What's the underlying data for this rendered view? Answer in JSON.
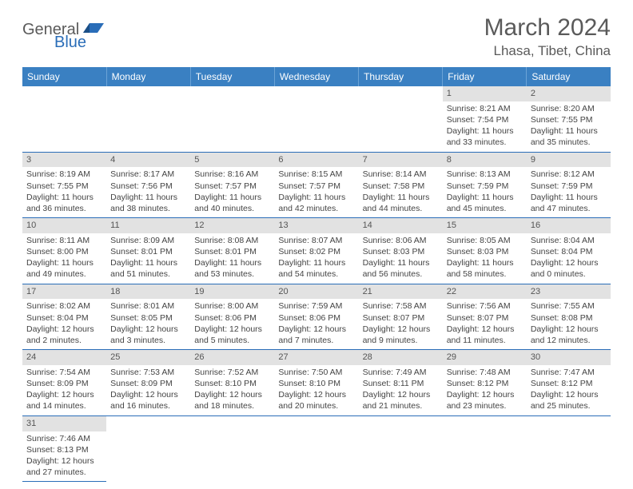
{
  "logo": {
    "part1": "General",
    "part2": "Blue"
  },
  "title": "March 2024",
  "location": "Lhasa, Tibet, China",
  "colors": {
    "header_bg": "#3a80c2",
    "header_text": "#ffffff",
    "border": "#2a6db8",
    "daynum_bg": "#e2e2e2",
    "body_text": "#444444",
    "logo_gray": "#5a5a5a",
    "logo_blue": "#2a6db8"
  },
  "day_headers": [
    "Sunday",
    "Monday",
    "Tuesday",
    "Wednesday",
    "Thursday",
    "Friday",
    "Saturday"
  ],
  "weeks": [
    [
      null,
      null,
      null,
      null,
      null,
      {
        "n": "1",
        "sr": "Sunrise: 8:21 AM",
        "ss": "Sunset: 7:54 PM",
        "d1": "Daylight: 11 hours",
        "d2": "and 33 minutes."
      },
      {
        "n": "2",
        "sr": "Sunrise: 8:20 AM",
        "ss": "Sunset: 7:55 PM",
        "d1": "Daylight: 11 hours",
        "d2": "and 35 minutes."
      }
    ],
    [
      {
        "n": "3",
        "sr": "Sunrise: 8:19 AM",
        "ss": "Sunset: 7:55 PM",
        "d1": "Daylight: 11 hours",
        "d2": "and 36 minutes."
      },
      {
        "n": "4",
        "sr": "Sunrise: 8:17 AM",
        "ss": "Sunset: 7:56 PM",
        "d1": "Daylight: 11 hours",
        "d2": "and 38 minutes."
      },
      {
        "n": "5",
        "sr": "Sunrise: 8:16 AM",
        "ss": "Sunset: 7:57 PM",
        "d1": "Daylight: 11 hours",
        "d2": "and 40 minutes."
      },
      {
        "n": "6",
        "sr": "Sunrise: 8:15 AM",
        "ss": "Sunset: 7:57 PM",
        "d1": "Daylight: 11 hours",
        "d2": "and 42 minutes."
      },
      {
        "n": "7",
        "sr": "Sunrise: 8:14 AM",
        "ss": "Sunset: 7:58 PM",
        "d1": "Daylight: 11 hours",
        "d2": "and 44 minutes."
      },
      {
        "n": "8",
        "sr": "Sunrise: 8:13 AM",
        "ss": "Sunset: 7:59 PM",
        "d1": "Daylight: 11 hours",
        "d2": "and 45 minutes."
      },
      {
        "n": "9",
        "sr": "Sunrise: 8:12 AM",
        "ss": "Sunset: 7:59 PM",
        "d1": "Daylight: 11 hours",
        "d2": "and 47 minutes."
      }
    ],
    [
      {
        "n": "10",
        "sr": "Sunrise: 8:11 AM",
        "ss": "Sunset: 8:00 PM",
        "d1": "Daylight: 11 hours",
        "d2": "and 49 minutes."
      },
      {
        "n": "11",
        "sr": "Sunrise: 8:09 AM",
        "ss": "Sunset: 8:01 PM",
        "d1": "Daylight: 11 hours",
        "d2": "and 51 minutes."
      },
      {
        "n": "12",
        "sr": "Sunrise: 8:08 AM",
        "ss": "Sunset: 8:01 PM",
        "d1": "Daylight: 11 hours",
        "d2": "and 53 minutes."
      },
      {
        "n": "13",
        "sr": "Sunrise: 8:07 AM",
        "ss": "Sunset: 8:02 PM",
        "d1": "Daylight: 11 hours",
        "d2": "and 54 minutes."
      },
      {
        "n": "14",
        "sr": "Sunrise: 8:06 AM",
        "ss": "Sunset: 8:03 PM",
        "d1": "Daylight: 11 hours",
        "d2": "and 56 minutes."
      },
      {
        "n": "15",
        "sr": "Sunrise: 8:05 AM",
        "ss": "Sunset: 8:03 PM",
        "d1": "Daylight: 11 hours",
        "d2": "and 58 minutes."
      },
      {
        "n": "16",
        "sr": "Sunrise: 8:04 AM",
        "ss": "Sunset: 8:04 PM",
        "d1": "Daylight: 12 hours",
        "d2": "and 0 minutes."
      }
    ],
    [
      {
        "n": "17",
        "sr": "Sunrise: 8:02 AM",
        "ss": "Sunset: 8:04 PM",
        "d1": "Daylight: 12 hours",
        "d2": "and 2 minutes."
      },
      {
        "n": "18",
        "sr": "Sunrise: 8:01 AM",
        "ss": "Sunset: 8:05 PM",
        "d1": "Daylight: 12 hours",
        "d2": "and 3 minutes."
      },
      {
        "n": "19",
        "sr": "Sunrise: 8:00 AM",
        "ss": "Sunset: 8:06 PM",
        "d1": "Daylight: 12 hours",
        "d2": "and 5 minutes."
      },
      {
        "n": "20",
        "sr": "Sunrise: 7:59 AM",
        "ss": "Sunset: 8:06 PM",
        "d1": "Daylight: 12 hours",
        "d2": "and 7 minutes."
      },
      {
        "n": "21",
        "sr": "Sunrise: 7:58 AM",
        "ss": "Sunset: 8:07 PM",
        "d1": "Daylight: 12 hours",
        "d2": "and 9 minutes."
      },
      {
        "n": "22",
        "sr": "Sunrise: 7:56 AM",
        "ss": "Sunset: 8:07 PM",
        "d1": "Daylight: 12 hours",
        "d2": "and 11 minutes."
      },
      {
        "n": "23",
        "sr": "Sunrise: 7:55 AM",
        "ss": "Sunset: 8:08 PM",
        "d1": "Daylight: 12 hours",
        "d2": "and 12 minutes."
      }
    ],
    [
      {
        "n": "24",
        "sr": "Sunrise: 7:54 AM",
        "ss": "Sunset: 8:09 PM",
        "d1": "Daylight: 12 hours",
        "d2": "and 14 minutes."
      },
      {
        "n": "25",
        "sr": "Sunrise: 7:53 AM",
        "ss": "Sunset: 8:09 PM",
        "d1": "Daylight: 12 hours",
        "d2": "and 16 minutes."
      },
      {
        "n": "26",
        "sr": "Sunrise: 7:52 AM",
        "ss": "Sunset: 8:10 PM",
        "d1": "Daylight: 12 hours",
        "d2": "and 18 minutes."
      },
      {
        "n": "27",
        "sr": "Sunrise: 7:50 AM",
        "ss": "Sunset: 8:10 PM",
        "d1": "Daylight: 12 hours",
        "d2": "and 20 minutes."
      },
      {
        "n": "28",
        "sr": "Sunrise: 7:49 AM",
        "ss": "Sunset: 8:11 PM",
        "d1": "Daylight: 12 hours",
        "d2": "and 21 minutes."
      },
      {
        "n": "29",
        "sr": "Sunrise: 7:48 AM",
        "ss": "Sunset: 8:12 PM",
        "d1": "Daylight: 12 hours",
        "d2": "and 23 minutes."
      },
      {
        "n": "30",
        "sr": "Sunrise: 7:47 AM",
        "ss": "Sunset: 8:12 PM",
        "d1": "Daylight: 12 hours",
        "d2": "and 25 minutes."
      }
    ],
    [
      {
        "n": "31",
        "sr": "Sunrise: 7:46 AM",
        "ss": "Sunset: 8:13 PM",
        "d1": "Daylight: 12 hours",
        "d2": "and 27 minutes."
      },
      null,
      null,
      null,
      null,
      null,
      null
    ]
  ]
}
